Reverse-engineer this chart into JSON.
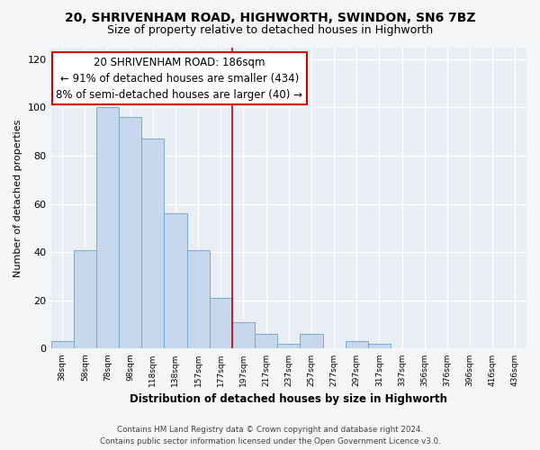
{
  "title": "20, SHRIVENHAM ROAD, HIGHWORTH, SWINDON, SN6 7BZ",
  "subtitle": "Size of property relative to detached houses in Highworth",
  "xlabel": "Distribution of detached houses by size in Highworth",
  "ylabel": "Number of detached properties",
  "bar_labels": [
    "38sqm",
    "58sqm",
    "78sqm",
    "98sqm",
    "118sqm",
    "138sqm",
    "157sqm",
    "177sqm",
    "197sqm",
    "217sqm",
    "237sqm",
    "257sqm",
    "277sqm",
    "297sqm",
    "317sqm",
    "337sqm",
    "356sqm",
    "376sqm",
    "396sqm",
    "416sqm",
    "436sqm"
  ],
  "bar_values": [
    3,
    41,
    100,
    96,
    87,
    56,
    41,
    21,
    11,
    6,
    2,
    6,
    0,
    3,
    2,
    0,
    0,
    0,
    0,
    0,
    0
  ],
  "bar_color": "#c8d8ec",
  "bar_edge_color": "#7aaacf",
  "annotation_line_color": "#cc0000",
  "annotation_box_text": "20 SHRIVENHAM ROAD: 186sqm\n← 91% of detached houses are smaller (434)\n8% of semi-detached houses are larger (40) →",
  "ylim": [
    0,
    125
  ],
  "yticks": [
    0,
    20,
    40,
    60,
    80,
    100,
    120
  ],
  "plot_bg_color": "#e8eef4",
  "fig_bg_color": "#f4f6f8",
  "footer_line1": "Contains HM Land Registry data © Crown copyright and database right 2024.",
  "footer_line2": "Contains public sector information licensed under the Open Government Licence v3.0."
}
